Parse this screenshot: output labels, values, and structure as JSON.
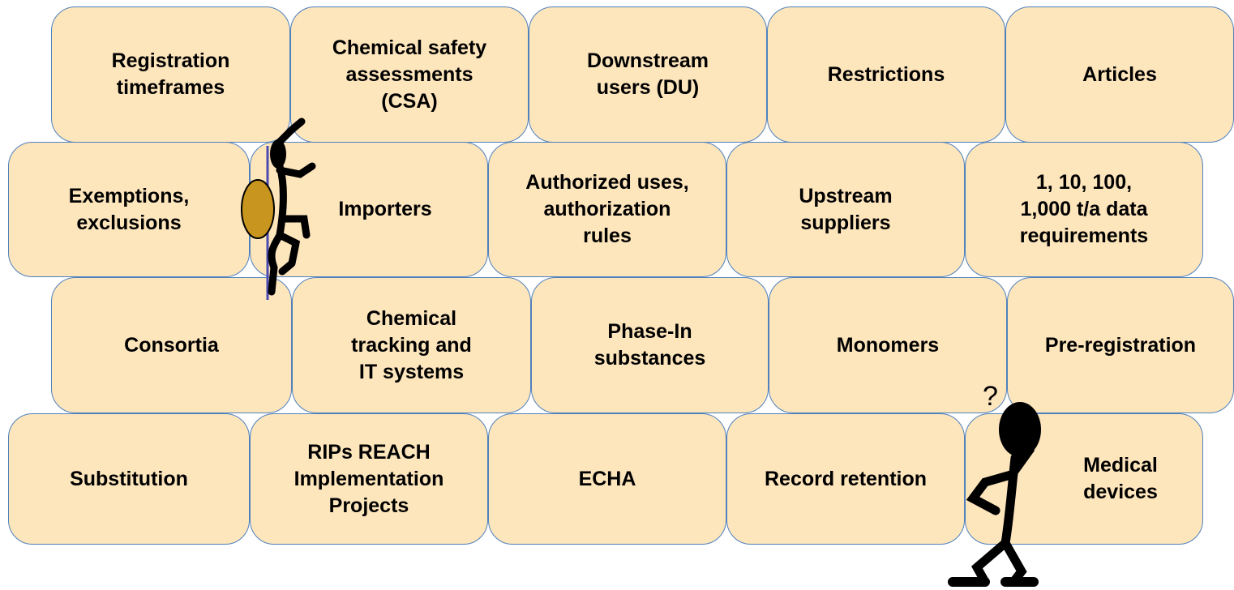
{
  "rows": [
    [
      "Registration\ntimeframes",
      "Chemical safety\nassessments\n(CSA)",
      "Downstream\nusers (DU)",
      "Restrictions",
      "Articles"
    ],
    [
      "Exemptions,\nexclusions",
      "Importers",
      "Authorized uses,\nauthorization\nrules",
      "Upstream\nsuppliers",
      "1, 10, 100,\n1,000 t/a data\nrequirements"
    ],
    [
      "Consortia",
      "Chemical\ntracking and\nIT systems",
      "Phase-In\nsubstances",
      "Monomers",
      "Pre-registration"
    ],
    [
      "Substitution",
      "RIPs REACH\nImplementation\nProjects",
      "ECHA",
      "Record retention",
      "Medical\ndevices"
    ]
  ]
}
